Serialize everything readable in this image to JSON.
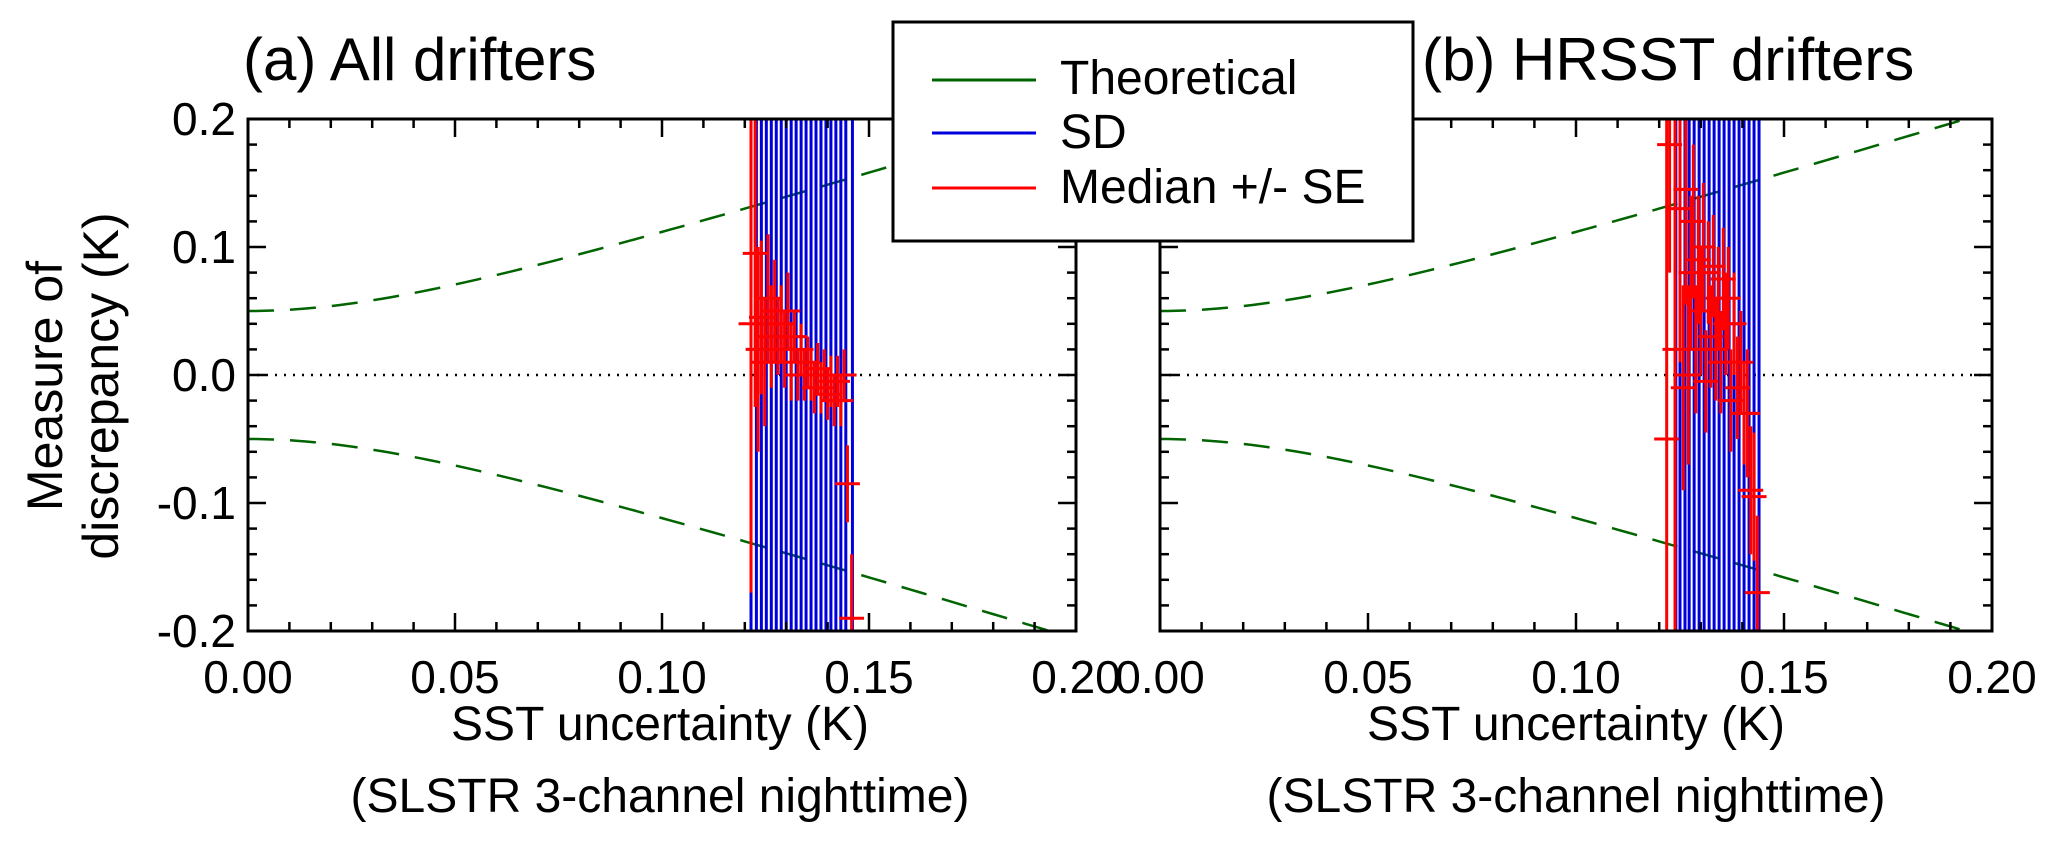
{
  "chart_data": {
    "type": "scatter",
    "ylabel_lines": [
      "Measure of",
      "discrepancy (K)"
    ],
    "legend": {
      "position": "top-center",
      "entries": [
        {
          "label": "Theoretical",
          "color": "#006400"
        },
        {
          "label": "SD",
          "color": "#0000dd"
        },
        {
          "label": "Median +/- SE",
          "color": "#ff0000"
        }
      ]
    },
    "colors": {
      "theoretical": "#006400",
      "sd": "#0000dd",
      "median": "#ff0000",
      "zero_line": "#000000"
    },
    "panels": [
      {
        "title": "(a) All drifters",
        "xlabel": "SST uncertainty (K)",
        "xlabel_sub": "(SLSTR 3-channel nighttime)",
        "xlim": [
          0.0,
          0.2
        ],
        "ylim": [
          -0.2,
          0.2
        ],
        "xticks": [
          "0.00",
          "0.05",
          "0.10",
          "0.15",
          "0.20"
        ],
        "yticks": [
          "0.2",
          "0.1",
          "0.0",
          "-0.1",
          "-0.2"
        ],
        "theoretical_offset": 0.05,
        "sd_bars": [
          {
            "x": 0.1215,
            "sd": 0.25
          },
          {
            "x": 0.1228,
            "sd": 0.25
          },
          {
            "x": 0.124,
            "sd": 0.25
          },
          {
            "x": 0.1252,
            "sd": 0.25
          },
          {
            "x": 0.1264,
            "sd": 0.25
          },
          {
            "x": 0.1276,
            "sd": 0.25
          },
          {
            "x": 0.1288,
            "sd": 0.25
          },
          {
            "x": 0.13,
            "sd": 0.25
          },
          {
            "x": 0.1312,
            "sd": 0.25
          },
          {
            "x": 0.1324,
            "sd": 0.25
          },
          {
            "x": 0.1336,
            "sd": 0.25
          },
          {
            "x": 0.1348,
            "sd": 0.25
          },
          {
            "x": 0.136,
            "sd": 0.25
          },
          {
            "x": 0.1372,
            "sd": 0.25
          },
          {
            "x": 0.1384,
            "sd": 0.25
          },
          {
            "x": 0.1396,
            "sd": 0.25
          },
          {
            "x": 0.1408,
            "sd": 0.25
          },
          {
            "x": 0.142,
            "sd": 0.25
          },
          {
            "x": 0.1432,
            "sd": 0.25
          },
          {
            "x": 0.1444,
            "sd": 0.25
          },
          {
            "x": 0.146,
            "sd": 0.25
          }
        ],
        "median_points": [
          {
            "x": 0.1215,
            "y": 0.04,
            "se": 0.21,
            "xerr": 0.003
          },
          {
            "x": 0.1225,
            "y": 0.095,
            "se": 0.12,
            "xerr": 0.003
          },
          {
            "x": 0.1232,
            "y": 0.02,
            "se": 0.08,
            "xerr": 0.003
          },
          {
            "x": 0.124,
            "y": 0.045,
            "se": 0.06,
            "xerr": 0.003
          },
          {
            "x": 0.1248,
            "y": 0.01,
            "se": 0.05,
            "xerr": 0.003
          },
          {
            "x": 0.1256,
            "y": 0.06,
            "se": 0.05,
            "xerr": 0.003
          },
          {
            "x": 0.1264,
            "y": 0.03,
            "se": 0.04,
            "xerr": 0.003
          },
          {
            "x": 0.1272,
            "y": 0.05,
            "se": 0.04,
            "xerr": 0.003
          },
          {
            "x": 0.128,
            "y": 0.03,
            "se": 0.03,
            "xerr": 0.003
          },
          {
            "x": 0.1288,
            "y": 0.04,
            "se": 0.03,
            "xerr": 0.003
          },
          {
            "x": 0.1296,
            "y": 0.02,
            "se": 0.03,
            "xerr": 0.003
          },
          {
            "x": 0.1304,
            "y": 0.05,
            "se": 0.03,
            "xerr": 0.003
          },
          {
            "x": 0.1312,
            "y": 0.01,
            "se": 0.03,
            "xerr": 0.003
          },
          {
            "x": 0.132,
            "y": 0.03,
            "se": 0.02,
            "xerr": 0.003
          },
          {
            "x": 0.1328,
            "y": 0.0,
            "se": 0.02,
            "xerr": 0.003
          },
          {
            "x": 0.1336,
            "y": 0.02,
            "se": 0.02,
            "xerr": 0.003
          },
          {
            "x": 0.1344,
            "y": 0.0,
            "se": 0.02,
            "xerr": 0.003
          },
          {
            "x": 0.1352,
            "y": 0.01,
            "se": 0.02,
            "xerr": 0.003
          },
          {
            "x": 0.136,
            "y": 0.0,
            "se": 0.02,
            "xerr": 0.003
          },
          {
            "x": 0.1368,
            "y": -0.01,
            "se": 0.02,
            "xerr": 0.003
          },
          {
            "x": 0.1376,
            "y": 0.005,
            "se": 0.02,
            "xerr": 0.003
          },
          {
            "x": 0.1384,
            "y": -0.01,
            "se": 0.02,
            "xerr": 0.003
          },
          {
            "x": 0.1392,
            "y": 0.0,
            "se": 0.02,
            "xerr": 0.003
          },
          {
            "x": 0.14,
            "y": -0.015,
            "se": 0.02,
            "xerr": 0.003
          },
          {
            "x": 0.1408,
            "y": -0.005,
            "se": 0.02,
            "xerr": 0.003
          },
          {
            "x": 0.1416,
            "y": -0.02,
            "se": 0.02,
            "xerr": 0.003
          },
          {
            "x": 0.1424,
            "y": -0.005,
            "se": 0.02,
            "xerr": 0.003
          },
          {
            "x": 0.1432,
            "y": -0.02,
            "se": 0.02,
            "xerr": 0.003
          },
          {
            "x": 0.144,
            "y": 0.0,
            "se": 0.02,
            "xerr": 0.003
          },
          {
            "x": 0.1448,
            "y": -0.085,
            "se": 0.03,
            "xerr": 0.003
          },
          {
            "x": 0.1458,
            "y": -0.19,
            "se": 0.05,
            "xerr": 0.003
          }
        ]
      },
      {
        "title": "(b) HRSST drifters",
        "xlabel": "SST uncertainty (K)",
        "xlabel_sub": "(SLSTR 3-channel nighttime)",
        "xlim": [
          0.0,
          0.2
        ],
        "ylim": [
          -0.2,
          0.2
        ],
        "xticks": [
          "0.00",
          "0.05",
          "0.10",
          "0.15",
          "0.20"
        ],
        "yticks": [],
        "theoretical_offset": 0.05,
        "sd_bars": [
          {
            "x": 0.124,
            "sd": 0.25
          },
          {
            "x": 0.125,
            "sd": 0.25
          },
          {
            "x": 0.1262,
            "sd": 0.25
          },
          {
            "x": 0.1272,
            "sd": 0.25
          },
          {
            "x": 0.1284,
            "sd": 0.25
          },
          {
            "x": 0.1296,
            "sd": 0.25
          },
          {
            "x": 0.1308,
            "sd": 0.25
          },
          {
            "x": 0.132,
            "sd": 0.25
          },
          {
            "x": 0.1332,
            "sd": 0.25
          },
          {
            "x": 0.1344,
            "sd": 0.25
          },
          {
            "x": 0.1356,
            "sd": 0.25
          },
          {
            "x": 0.1368,
            "sd": 0.25
          },
          {
            "x": 0.138,
            "sd": 0.25
          },
          {
            "x": 0.1392,
            "sd": 0.25
          },
          {
            "x": 0.1404,
            "sd": 0.25
          },
          {
            "x": 0.1416,
            "sd": 0.25
          },
          {
            "x": 0.1428,
            "sd": 0.25
          },
          {
            "x": 0.144,
            "sd": 0.25
          }
        ],
        "median_points": [
          {
            "x": 0.1218,
            "y": -0.05,
            "se": 0.35,
            "xerr": 0.003
          },
          {
            "x": 0.1225,
            "y": 0.18,
            "se": 0.1,
            "xerr": 0.003
          },
          {
            "x": 0.1238,
            "y": 0.02,
            "se": 0.25,
            "xerr": 0.003
          },
          {
            "x": 0.125,
            "y": 0.13,
            "se": 0.12,
            "xerr": 0.003
          },
          {
            "x": 0.1258,
            "y": -0.01,
            "se": 0.08,
            "xerr": 0.003
          },
          {
            "x": 0.1264,
            "y": 0.145,
            "se": 0.09,
            "xerr": 0.003
          },
          {
            "x": 0.127,
            "y": 0.0,
            "se": 0.07,
            "xerr": 0.003
          },
          {
            "x": 0.1276,
            "y": 0.08,
            "se": 0.06,
            "xerr": 0.003
          },
          {
            "x": 0.1282,
            "y": 0.12,
            "se": 0.06,
            "xerr": 0.003
          },
          {
            "x": 0.1288,
            "y": 0.02,
            "se": 0.05,
            "xerr": 0.003
          },
          {
            "x": 0.1294,
            "y": 0.09,
            "se": 0.05,
            "xerr": 0.003
          },
          {
            "x": 0.13,
            "y": 0.05,
            "se": 0.05,
            "xerr": 0.003
          },
          {
            "x": 0.1306,
            "y": 0.1,
            "se": 0.05,
            "xerr": 0.003
          },
          {
            "x": 0.1312,
            "y": -0.005,
            "se": 0.04,
            "xerr": 0.003
          },
          {
            "x": 0.1318,
            "y": 0.08,
            "se": 0.04,
            "xerr": 0.003
          },
          {
            "x": 0.1324,
            "y": 0.03,
            "se": 0.04,
            "xerr": 0.003
          },
          {
            "x": 0.133,
            "y": 0.085,
            "se": 0.04,
            "xerr": 0.003
          },
          {
            "x": 0.1336,
            "y": 0.02,
            "se": 0.04,
            "xerr": 0.003
          },
          {
            "x": 0.1342,
            "y": 0.06,
            "se": 0.04,
            "xerr": 0.003
          },
          {
            "x": 0.1348,
            "y": 0.01,
            "se": 0.04,
            "xerr": 0.003
          },
          {
            "x": 0.1354,
            "y": 0.075,
            "se": 0.04,
            "xerr": 0.003
          },
          {
            "x": 0.136,
            "y": 0.04,
            "se": 0.04,
            "xerr": 0.003
          },
          {
            "x": 0.1366,
            "y": 0.06,
            "se": 0.04,
            "xerr": 0.003
          },
          {
            "x": 0.1372,
            "y": -0.02,
            "se": 0.04,
            "xerr": 0.003
          },
          {
            "x": 0.138,
            "y": 0.04,
            "se": 0.04,
            "xerr": 0.003
          },
          {
            "x": 0.1388,
            "y": -0.01,
            "se": 0.04,
            "xerr": 0.003
          },
          {
            "x": 0.1396,
            "y": 0.01,
            "se": 0.04,
            "xerr": 0.003
          },
          {
            "x": 0.1404,
            "y": -0.03,
            "se": 0.04,
            "xerr": 0.003
          },
          {
            "x": 0.1412,
            "y": -0.03,
            "se": 0.05,
            "xerr": 0.003
          },
          {
            "x": 0.142,
            "y": -0.09,
            "se": 0.05,
            "xerr": 0.003
          },
          {
            "x": 0.1428,
            "y": -0.095,
            "se": 0.05,
            "xerr": 0.003
          },
          {
            "x": 0.1436,
            "y": -0.17,
            "se": 0.06,
            "xerr": 0.003
          }
        ]
      }
    ]
  }
}
